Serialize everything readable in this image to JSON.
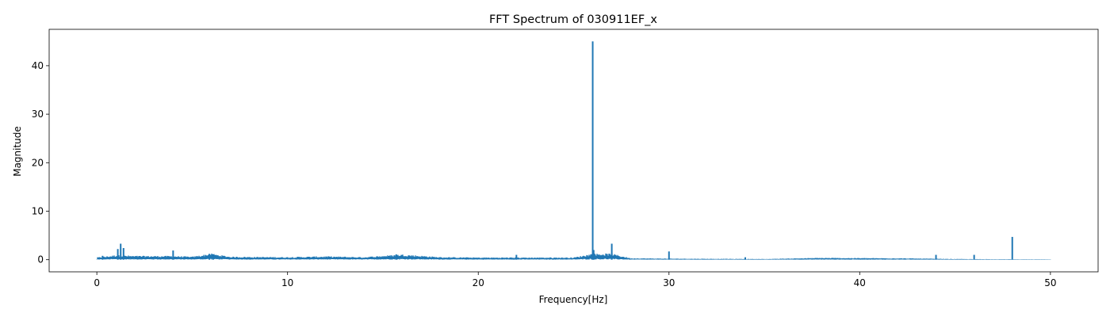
{
  "chart_data": {
    "type": "line",
    "title": "FFT Spectrum of 030911EF_x",
    "xlabel": "Frequency[Hz]",
    "ylabel": "Magnitude",
    "xlim": [
      -2.5,
      52.5
    ],
    "ylim": [
      -2.5,
      47.5
    ],
    "xticks": [
      0,
      10,
      20,
      30,
      40,
      50
    ],
    "xtick_labels": [
      "0",
      "10",
      "20",
      "30",
      "40",
      "50"
    ],
    "yticks": [
      0,
      10,
      20,
      30,
      40
    ],
    "ytick_labels": [
      "0",
      "10",
      "20",
      "30",
      "40"
    ],
    "grid": false,
    "series_color": "#1f77b4",
    "baseline": [
      [
        0,
        0.3
      ],
      [
        1,
        0.6
      ],
      [
        2,
        0.5
      ],
      [
        4,
        0.5
      ],
      [
        5,
        0.4
      ],
      [
        6,
        0.8
      ],
      [
        7,
        0.4
      ],
      [
        10,
        0.35
      ],
      [
        12,
        0.45
      ],
      [
        14,
        0.35
      ],
      [
        16,
        0.7
      ],
      [
        18,
        0.35
      ],
      [
        20,
        0.3
      ],
      [
        25,
        0.3
      ],
      [
        26,
        0.8
      ],
      [
        27,
        0.8
      ],
      [
        28,
        0.2
      ],
      [
        30,
        0.15
      ],
      [
        35,
        0.1
      ],
      [
        38,
        0.25
      ],
      [
        42,
        0.2
      ],
      [
        45,
        0.1
      ],
      [
        50,
        0.05
      ]
    ],
    "peaks": [
      {
        "x": 0.3,
        "y": 0.8
      },
      {
        "x": 1.1,
        "y": 2.2
      },
      {
        "x": 1.25,
        "y": 3.3
      },
      {
        "x": 1.4,
        "y": 2.4
      },
      {
        "x": 4.0,
        "y": 1.9
      },
      {
        "x": 5.9,
        "y": 1.2
      },
      {
        "x": 6.1,
        "y": 1.1
      },
      {
        "x": 15.7,
        "y": 1.1
      },
      {
        "x": 22.0,
        "y": 1.0
      },
      {
        "x": 26.0,
        "y": 45.0
      },
      {
        "x": 26.05,
        "y": 2.0
      },
      {
        "x": 27.0,
        "y": 3.3
      },
      {
        "x": 30.0,
        "y": 1.7
      },
      {
        "x": 34.0,
        "y": 0.5
      },
      {
        "x": 44.0,
        "y": 1.0
      },
      {
        "x": 46.0,
        "y": 1.0
      },
      {
        "x": 48.0,
        "y": 4.7
      }
    ]
  }
}
